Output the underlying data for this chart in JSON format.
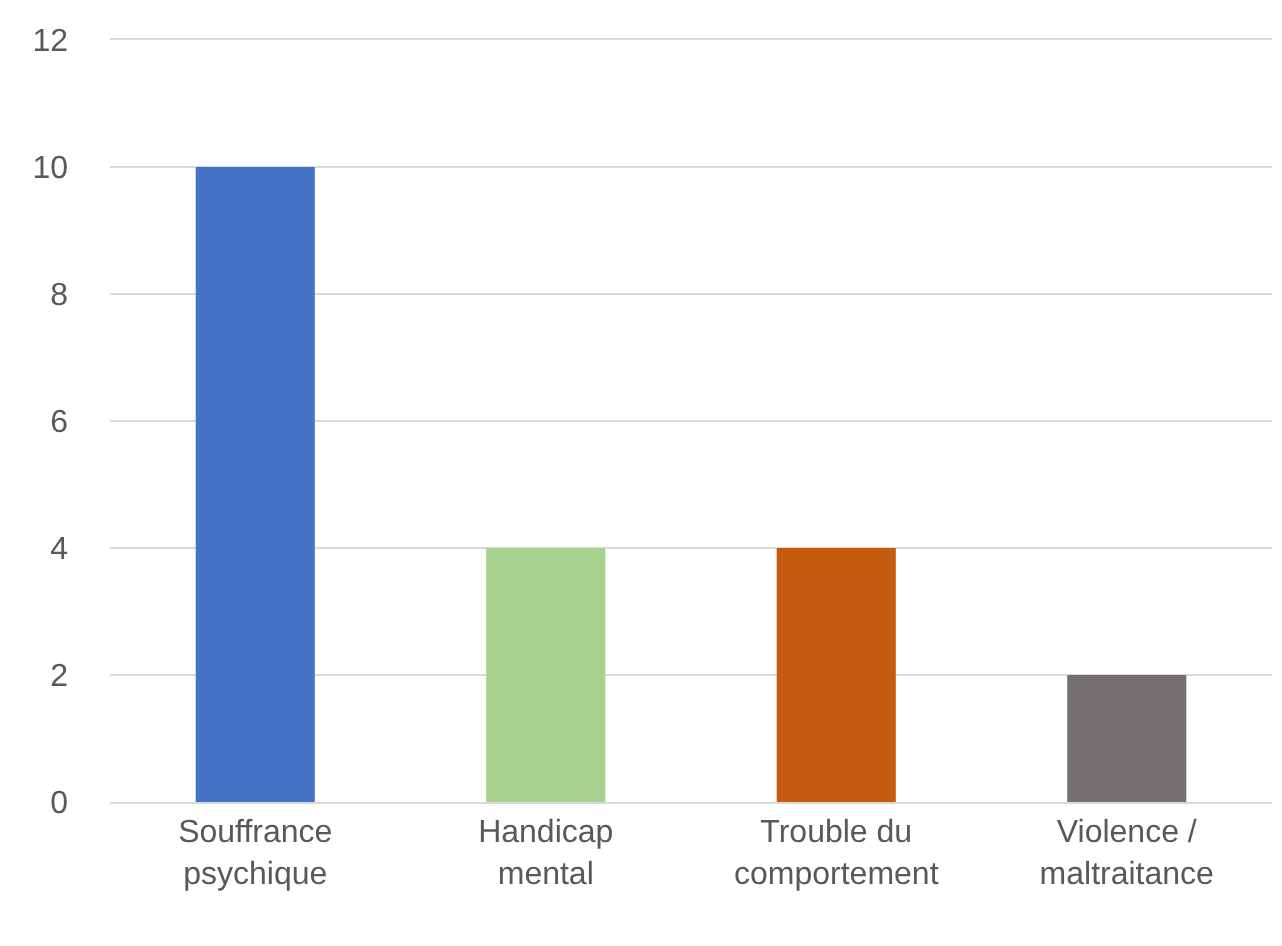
{
  "chart_data": {
    "type": "bar",
    "categories": [
      "Souffrance\npsychique",
      "Handicap\nmental",
      "Trouble du\ncomportement",
      "Violence /\nmaltraitance"
    ],
    "values": [
      10,
      4,
      4,
      2
    ],
    "colors": [
      "#4472c4",
      "#a9d18e",
      "#c55a11",
      "#767171"
    ],
    "ylim": [
      0,
      12
    ],
    "yticks": [
      0,
      2,
      4,
      6,
      8,
      10,
      12
    ],
    "grid": "y"
  }
}
